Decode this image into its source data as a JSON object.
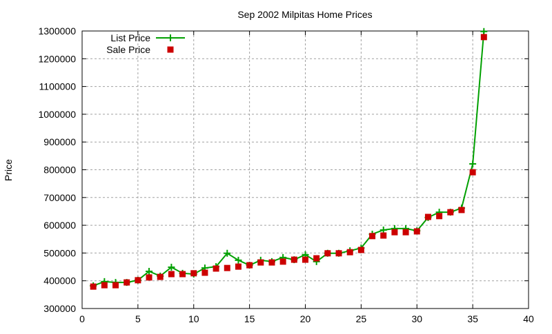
{
  "chart_data": {
    "type": "line",
    "title": "Sep 2002 Milpitas Home Prices",
    "xlabel": "",
    "ylabel": "Price",
    "xlim": [
      0,
      40
    ],
    "ylim": [
      300000,
      1300000
    ],
    "xticks": [
      0,
      5,
      10,
      15,
      20,
      25,
      30,
      35,
      40
    ],
    "yticks": [
      300000,
      400000,
      500000,
      600000,
      700000,
      800000,
      900000,
      1000000,
      1100000,
      1200000,
      1300000
    ],
    "grid": true,
    "legend_position": "top-left",
    "x": [
      1,
      2,
      3,
      4,
      5,
      6,
      7,
      8,
      9,
      10,
      11,
      12,
      13,
      14,
      15,
      16,
      17,
      18,
      19,
      20,
      21,
      22,
      23,
      24,
      25,
      26,
      27,
      28,
      29,
      30,
      31,
      32,
      33,
      34,
      35,
      36
    ],
    "series": [
      {
        "name": "List Price",
        "style": "linespoints",
        "marker": "plus",
        "color": "#00a000",
        "values": [
          382000,
          397000,
          394000,
          394000,
          402000,
          434000,
          417000,
          449000,
          427000,
          424000,
          446000,
          451000,
          499000,
          474000,
          456000,
          474000,
          469000,
          484000,
          476000,
          494000,
          469000,
          499000,
          499000,
          508000,
          518000,
          568000,
          583000,
          588000,
          588000,
          580000,
          628000,
          647000,
          647000,
          662000,
          821000,
          1298000
        ]
      },
      {
        "name": "Sale Price",
        "style": "points",
        "marker": "square",
        "color": "#cc0000",
        "values": [
          379000,
          384000,
          384000,
          394000,
          402000,
          412000,
          414000,
          424000,
          424000,
          427000,
          429000,
          444000,
          446000,
          451000,
          456000,
          466000,
          466000,
          469000,
          476000,
          476000,
          481000,
          499000,
          499000,
          503000,
          511000,
          561000,
          563000,
          575000,
          575000,
          578000,
          630000,
          633000,
          647000,
          655000,
          791000,
          1278000
        ]
      }
    ]
  }
}
